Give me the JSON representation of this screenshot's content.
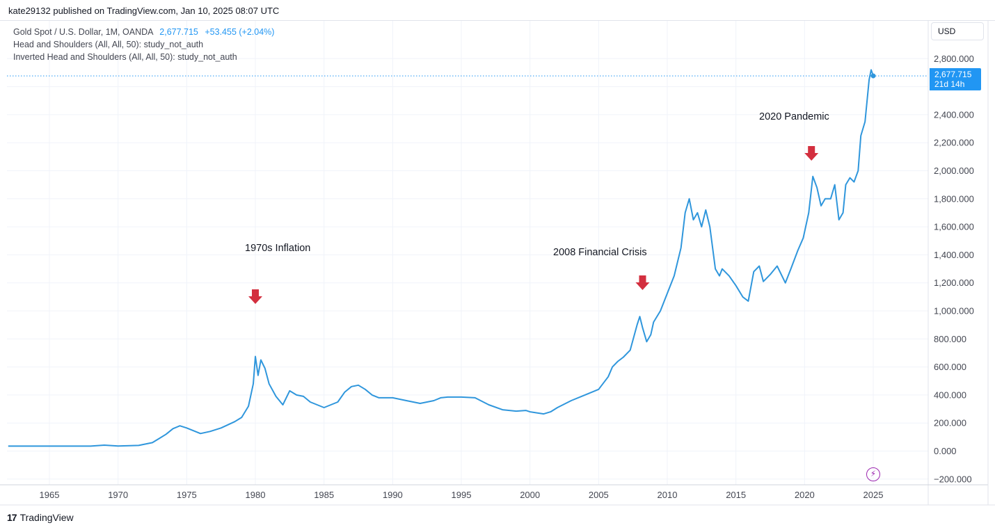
{
  "header": {
    "publisher": "kate29132 published on TradingView.com, Jan 10, 2025 08:07 UTC"
  },
  "legend": {
    "symbol": "Gold Spot / U.S. Dollar, 1M, OANDA",
    "price": "2,677.715",
    "change": "+53.455 (+2.04%)",
    "study1": "Head and Shoulders (All, All, 50): study_not_auth",
    "study2": "Inverted Head and Shoulders (All, All, 50): study_not_auth"
  },
  "price_axis": {
    "currency": "USD",
    "last_price": "2,677.715",
    "countdown": "21d 14h"
  },
  "annotations": [
    {
      "text": "1970s Inflation",
      "x": 1980.0
    },
    {
      "text": "2008 Financial Crisis",
      "x": 2008.2
    },
    {
      "text": "2020 Pandemic",
      "x": 2020.5
    }
  ],
  "footer": {
    "brand": "TradingView",
    "brand_logo": "17"
  },
  "colors": {
    "line": "#2f96dc",
    "arrow": "#d32f3f",
    "grid": "#f0f3fa",
    "accent": "#2196f3"
  },
  "icons": [
    "bolt-icon",
    "tradingview-logo-icon",
    "down-arrow-icon"
  ],
  "chart_data": {
    "type": "line",
    "title": "",
    "xlabel": "",
    "ylabel": "",
    "xlim": [
      1961.9,
      2029.0
    ],
    "ylim": [
      -200,
      3000
    ],
    "x_ticks": [
      1965,
      1970,
      1975,
      1980,
      1985,
      1990,
      1995,
      2000,
      2005,
      2010,
      2015,
      2020,
      2025
    ],
    "y_ticks": [
      -200,
      0,
      200,
      400,
      600,
      800,
      1000,
      1200,
      1400,
      1600,
      1800,
      2000,
      2200,
      2400,
      2800
    ],
    "grid": true,
    "series": [
      {
        "name": "",
        "x": [
          1962.0,
          1968.0,
          1969.0,
          1970.0,
          1971.5,
          1972.5,
          1973.0,
          1973.5,
          1974.0,
          1974.5,
          1975.0,
          1976.0,
          1976.7,
          1977.5,
          1978.5,
          1979.0,
          1979.5,
          1979.85,
          1980.0,
          1980.2,
          1980.4,
          1980.7,
          1981.0,
          1981.5,
          1982.0,
          1982.5,
          1983.0,
          1983.5,
          1984.0,
          1985.0,
          1985.5,
          1986.0,
          1986.5,
          1987.0,
          1987.5,
          1988.0,
          1988.5,
          1989.0,
          1990.0,
          1991.0,
          1992.0,
          1993.0,
          1993.5,
          1994.0,
          1995.0,
          1996.0,
          1997.0,
          1998.0,
          1999.0,
          1999.7,
          2000.0,
          2001.0,
          2001.5,
          2002.0,
          2003.0,
          2004.0,
          2005.0,
          2005.7,
          2006.0,
          2006.4,
          2006.8,
          2007.3,
          2007.8,
          2008.0,
          2008.2,
          2008.5,
          2008.8,
          2009.0,
          2009.5,
          2009.9,
          2010.5,
          2011.0,
          2011.3,
          2011.6,
          2011.9,
          2012.2,
          2012.5,
          2012.8,
          2013.1,
          2013.5,
          2013.8,
          2014.0,
          2014.5,
          2015.0,
          2015.5,
          2015.9,
          2016.3,
          2016.7,
          2017.0,
          2017.5,
          2018.0,
          2018.6,
          2019.0,
          2019.5,
          2019.9,
          2020.3,
          2020.6,
          2020.9,
          2021.2,
          2021.5,
          2021.9,
          2022.2,
          2022.5,
          2022.8,
          2023.0,
          2023.3,
          2023.6,
          2023.9,
          2024.1,
          2024.4,
          2024.7,
          2024.85,
          2025.0
        ],
        "values": [
          35,
          35,
          42,
          36,
          40,
          60,
          90,
          120,
          160,
          180,
          165,
          125,
          140,
          165,
          210,
          240,
          320,
          480,
          675,
          540,
          650,
          590,
          480,
          390,
          330,
          430,
          400,
          390,
          350,
          310,
          330,
          350,
          420,
          460,
          470,
          440,
          400,
          380,
          380,
          360,
          340,
          360,
          380,
          385,
          385,
          380,
          330,
          295,
          285,
          290,
          280,
          265,
          280,
          310,
          360,
          400,
          440,
          530,
          600,
          640,
          670,
          720,
          900,
          960,
          880,
          780,
          830,
          920,
          1000,
          1100,
          1250,
          1450,
          1700,
          1800,
          1650,
          1700,
          1600,
          1720,
          1600,
          1300,
          1250,
          1300,
          1250,
          1180,
          1100,
          1070,
          1280,
          1320,
          1210,
          1260,
          1320,
          1200,
          1300,
          1430,
          1520,
          1700,
          1960,
          1880,
          1750,
          1800,
          1800,
          1900,
          1650,
          1700,
          1900,
          1950,
          1920,
          2000,
          2250,
          2350,
          2650,
          2720,
          2677
        ]
      }
    ]
  }
}
